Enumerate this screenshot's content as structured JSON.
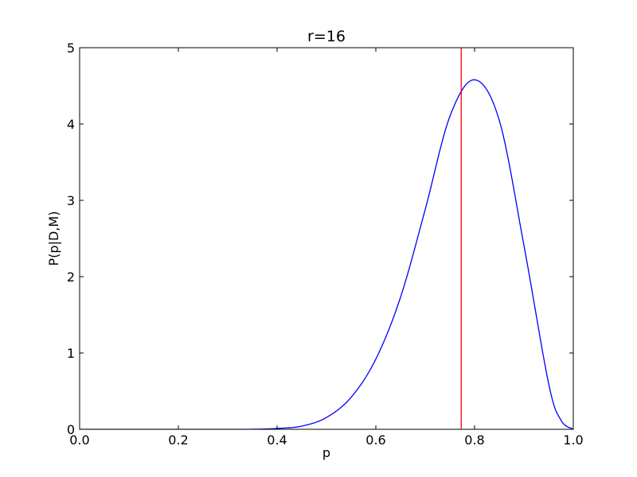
{
  "chart_data": {
    "type": "line",
    "title": "r=16",
    "xlabel": "p",
    "ylabel": "P(p|D,M)",
    "xlim": [
      0.0,
      1.0
    ],
    "ylim": [
      0,
      5
    ],
    "xticks": [
      "0.0",
      "0.2",
      "0.4",
      "0.6",
      "0.8",
      "1.0"
    ],
    "yticks": [
      "0",
      "1",
      "2",
      "3",
      "4",
      "5"
    ],
    "grid": false,
    "legend": "none",
    "series": [
      {
        "color": "#0000ff",
        "x": [
          0.0,
          0.05,
          0.1,
          0.15,
          0.2,
          0.25,
          0.3,
          0.35,
          0.4,
          0.45,
          0.5,
          0.55,
          0.6,
          0.65,
          0.7,
          0.75,
          0.8,
          0.85,
          0.9,
          0.95,
          0.975,
          1.0
        ],
        "y": [
          0.0,
          0.0,
          0.0,
          0.0,
          0.0,
          0.0,
          0.0,
          0.0007,
          0.011,
          0.042,
          0.155,
          0.42,
          0.92,
          1.73,
          2.88,
          4.1,
          4.58,
          4.05,
          2.41,
          0.6,
          0.12,
          0.0
        ]
      }
    ],
    "vlines": [
      {
        "x": 0.773,
        "color": "#ff0000"
      }
    ]
  }
}
